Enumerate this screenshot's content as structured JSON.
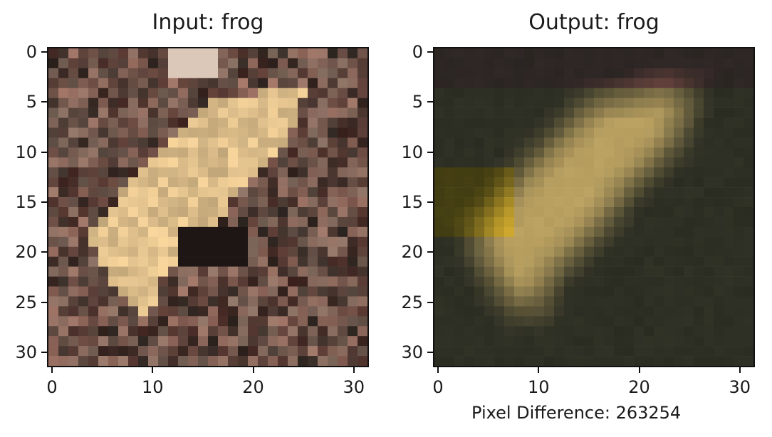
{
  "chart_data": [
    {
      "type": "heatmap",
      "title": "Input: frog",
      "xticks": [
        0,
        10,
        20,
        30
      ],
      "yticks": [
        0,
        5,
        10,
        15,
        20,
        25,
        30
      ],
      "xlim": [
        -0.5,
        31.5
      ],
      "ylim": [
        31.5,
        -0.5
      ],
      "grid": false,
      "image_grid": [
        32,
        32
      ],
      "image_content": "pixelated photo of a pale tan frog on brown leaf litter"
    },
    {
      "type": "heatmap",
      "title": "Output: frog",
      "xticks": [
        0,
        10,
        20,
        30
      ],
      "yticks": [
        0,
        5,
        10,
        15,
        20,
        25,
        30
      ],
      "xlim": [
        -0.5,
        31.5
      ],
      "ylim": [
        31.5,
        -0.5
      ],
      "grid": false,
      "image_grid": [
        32,
        32
      ],
      "image_content": "blurry, darker reconstruction of the frog image",
      "annotation": "Pixel Difference: 263254"
    }
  ],
  "colors": {
    "input_background": "#6e5b50",
    "input_frog": "#e3c79e",
    "output_background": "#2a2c22",
    "output_frog": "#b69d6f",
    "axis": "#111111"
  }
}
